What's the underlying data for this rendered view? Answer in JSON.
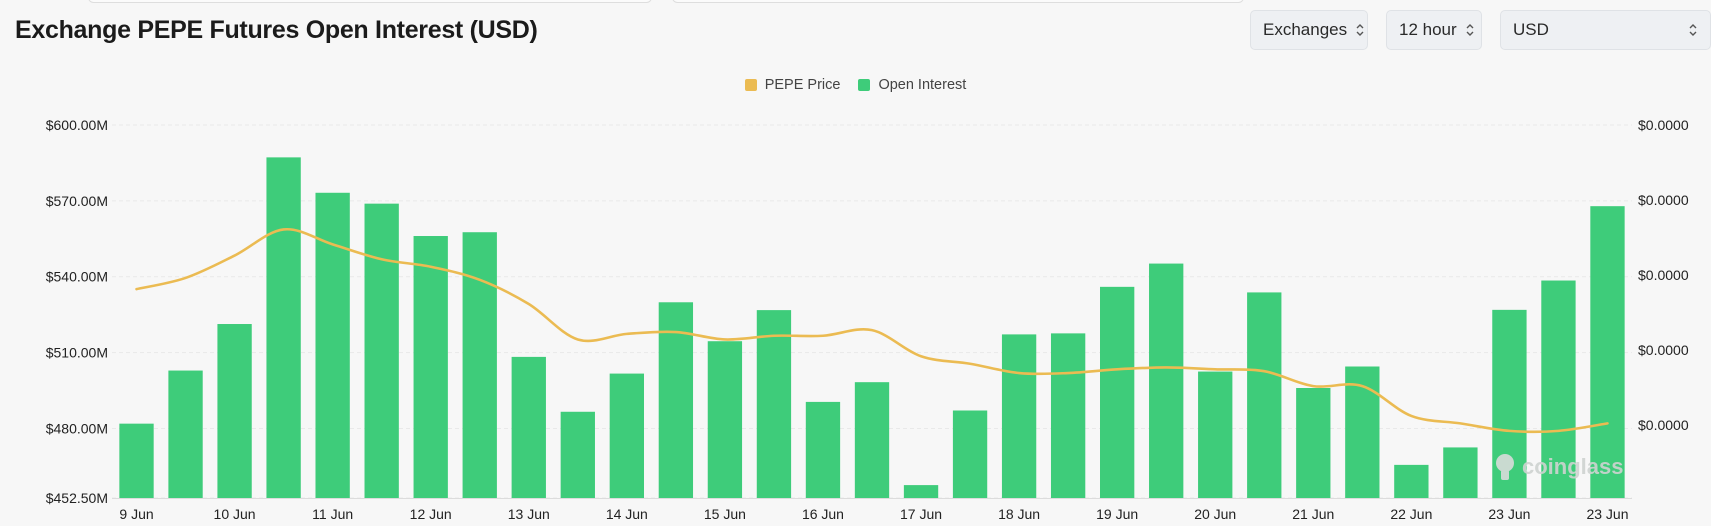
{
  "header": {
    "title": "Exchange PEPE Futures Open Interest (USD)"
  },
  "controls": {
    "exchanges_label": "Exchanges",
    "interval_label": "12 hour",
    "currency_label": "USD"
  },
  "watermark": {
    "text": "coinglass"
  },
  "colors": {
    "open_interest": "#3ecc7a",
    "price": "#ebbb52",
    "grid": "#e9e9e9",
    "axis_text": "#222222"
  },
  "chart_data": {
    "type": "bar",
    "title": "Exchange PEPE Futures Open Interest (USD)",
    "legend": [
      "PEPE Price",
      "Open Interest"
    ],
    "legend_position": "top-center",
    "grid": true,
    "x_tick_labels": [
      "9 Jun",
      "10 Jun",
      "11 Jun",
      "12 Jun",
      "13 Jun",
      "14 Jun",
      "15 Jun",
      "16 Jun",
      "17 Jun",
      "18 Jun",
      "19 Jun",
      "20 Jun",
      "21 Jun",
      "22 Jun",
      "23 Jun",
      "23 Jun"
    ],
    "y_left": {
      "ticks": [
        600000000,
        570000000,
        540000000,
        510000000,
        480000000,
        452500000
      ],
      "tick_labels": [
        "$600.00M",
        "$570.00M",
        "$540.00M",
        "$510.00M",
        "$480.00M",
        "$452.50M"
      ],
      "range": [
        452500000,
        600000000
      ]
    },
    "y_right": {
      "tick_labels": [
        "$0.0000",
        "$0.0000",
        "$0.0000",
        "$0.0000",
        "$0.0000"
      ]
    },
    "series": [
      {
        "name": "Open Interest",
        "type": "bar",
        "axis": "left",
        "values": [
          481.9,
          502.9,
          521.3,
          587.2,
          573.2,
          568.9,
          556.1,
          557.6,
          508.3,
          486.6,
          501.7,
          529.9,
          514.5,
          526.8,
          490.5,
          498.3,
          457.6,
          487.1,
          517.2,
          517.6,
          536.0,
          545.2,
          502.5,
          533.8,
          496.0,
          504.5,
          465.6,
          472.5,
          526.9,
          538.5,
          567.9
        ]
      },
      {
        "name": "PEPE Price",
        "type": "line",
        "axis": "right",
        "values_relative": [
          0.56,
          0.59,
          0.65,
          0.72,
          0.68,
          0.64,
          0.62,
          0.585,
          0.52,
          0.425,
          0.44,
          0.445,
          0.425,
          0.435,
          0.435,
          0.45,
          0.38,
          0.36,
          0.335,
          0.335,
          0.345,
          0.35,
          0.345,
          0.34,
          0.3,
          0.3,
          0.22,
          0.2,
          0.18,
          0.18,
          0.2
        ]
      }
    ]
  }
}
